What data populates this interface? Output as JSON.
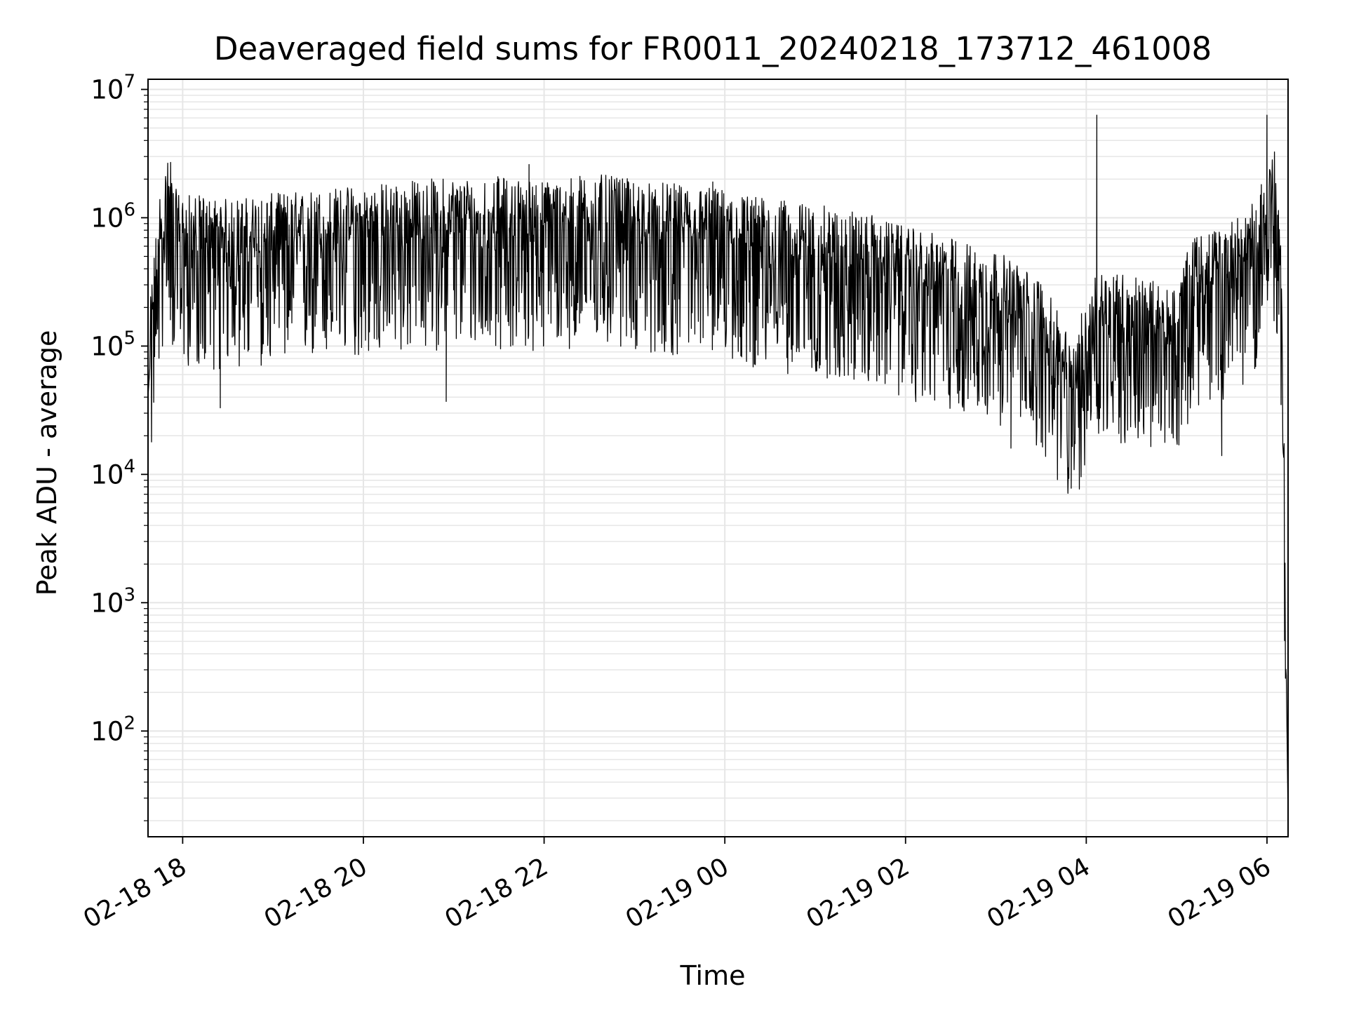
{
  "chart_data": {
    "type": "line",
    "title": "Deaveraged field sums for FR0011_20240218_173712_461008",
    "xlabel": "Time",
    "ylabel": "Peak ADU - average",
    "yscale": "log",
    "ylim": [
      15,
      12000000
    ],
    "xlim": [
      "2024-02-18T17:37:00",
      "2024-02-19T06:14:00"
    ],
    "x_ticks": [
      {
        "value": "2024-02-18T18:00:00",
        "label": "02-18 18"
      },
      {
        "value": "2024-02-18T20:00:00",
        "label": "02-18 20"
      },
      {
        "value": "2024-02-18T22:00:00",
        "label": "02-18 22"
      },
      {
        "value": "2024-02-19T00:00:00",
        "label": "02-19 00"
      },
      {
        "value": "2024-02-19T02:00:00",
        "label": "02-19 02"
      },
      {
        "value": "2024-02-19T04:00:00",
        "label": "02-19 04"
      },
      {
        "value": "2024-02-19T06:00:00",
        "label": "02-19 06"
      }
    ],
    "y_ticks": [
      {
        "value": 100,
        "base": "10",
        "exp": "2"
      },
      {
        "value": 1000,
        "base": "10",
        "exp": "3"
      },
      {
        "value": 10000,
        "base": "10",
        "exp": "4"
      },
      {
        "value": 100000,
        "base": "10",
        "exp": "5"
      },
      {
        "value": 1000000,
        "base": "10",
        "exp": "6"
      },
      {
        "value": 10000000,
        "base": "10",
        "exp": "7"
      }
    ],
    "grid": true,
    "line_color": "#000000",
    "grid_color": "#e6e6e6",
    "series": [
      {
        "x": [
          "2024-02-18T17:37:00",
          "2024-02-18T17:40:00",
          "2024-02-18T17:45:00",
          "2024-02-18T17:50:00",
          "2024-02-18T17:55:00",
          "2024-02-18T18:00:00",
          "2024-02-18T18:30:00",
          "2024-02-18T19:00:00",
          "2024-02-18T19:30:00",
          "2024-02-18T20:00:00",
          "2024-02-18T20:30:00",
          "2024-02-18T21:00:00",
          "2024-02-18T21:30:00",
          "2024-02-18T22:00:00",
          "2024-02-18T22:30:00",
          "2024-02-18T23:00:00",
          "2024-02-18T23:30:00",
          "2024-02-19T00:00:00",
          "2024-02-19T00:30:00",
          "2024-02-19T01:00:00",
          "2024-02-19T01:30:00",
          "2024-02-19T02:00:00",
          "2024-02-19T02:30:00",
          "2024-02-19T03:00:00",
          "2024-02-19T03:30:00",
          "2024-02-19T03:50:00",
          "2024-02-19T04:00:00",
          "2024-02-19T04:05:00",
          "2024-02-19T04:30:00",
          "2024-02-19T05:00:00",
          "2024-02-19T05:10:00",
          "2024-02-19T05:30:00",
          "2024-02-19T05:50:00",
          "2024-02-19T06:00:00",
          "2024-02-19T06:05:00",
          "2024-02-19T06:10:00",
          "2024-02-19T06:14:00"
        ],
        "y": [
          40000,
          150000,
          600000,
          1000000,
          600000,
          550000,
          500000,
          550000,
          600000,
          650000,
          700000,
          750000,
          750000,
          700000,
          800000,
          700000,
          650000,
          600000,
          500000,
          450000,
          400000,
          300000,
          250000,
          200000,
          120000,
          40000,
          80000,
          150000,
          130000,
          100000,
          250000,
          300000,
          450000,
          900000,
          1200000,
          150000,
          20
        ]
      }
    ],
    "spikes": [
      {
        "x": "2024-02-19T04:07:00",
        "y": 6300000
      },
      {
        "x": "2024-02-19T06:00:00",
        "y": 6300000
      },
      {
        "x": "2024-02-18T23:52:00",
        "y": 1900000
      },
      {
        "x": "2024-02-18T21:50:00",
        "y": 2600000
      },
      {
        "x": "2024-02-18T17:52:00",
        "y": 2700000
      }
    ],
    "dips": [
      {
        "x": "2024-02-19T03:50:00",
        "y": 7800
      },
      {
        "x": "2024-02-19T03:10:00",
        "y": 16000
      },
      {
        "x": "2024-02-19T05:30:00",
        "y": 14000
      },
      {
        "x": "2024-02-18T18:25:00",
        "y": 33000
      },
      {
        "x": "2024-02-18T20:55:00",
        "y": 37000
      }
    ]
  }
}
